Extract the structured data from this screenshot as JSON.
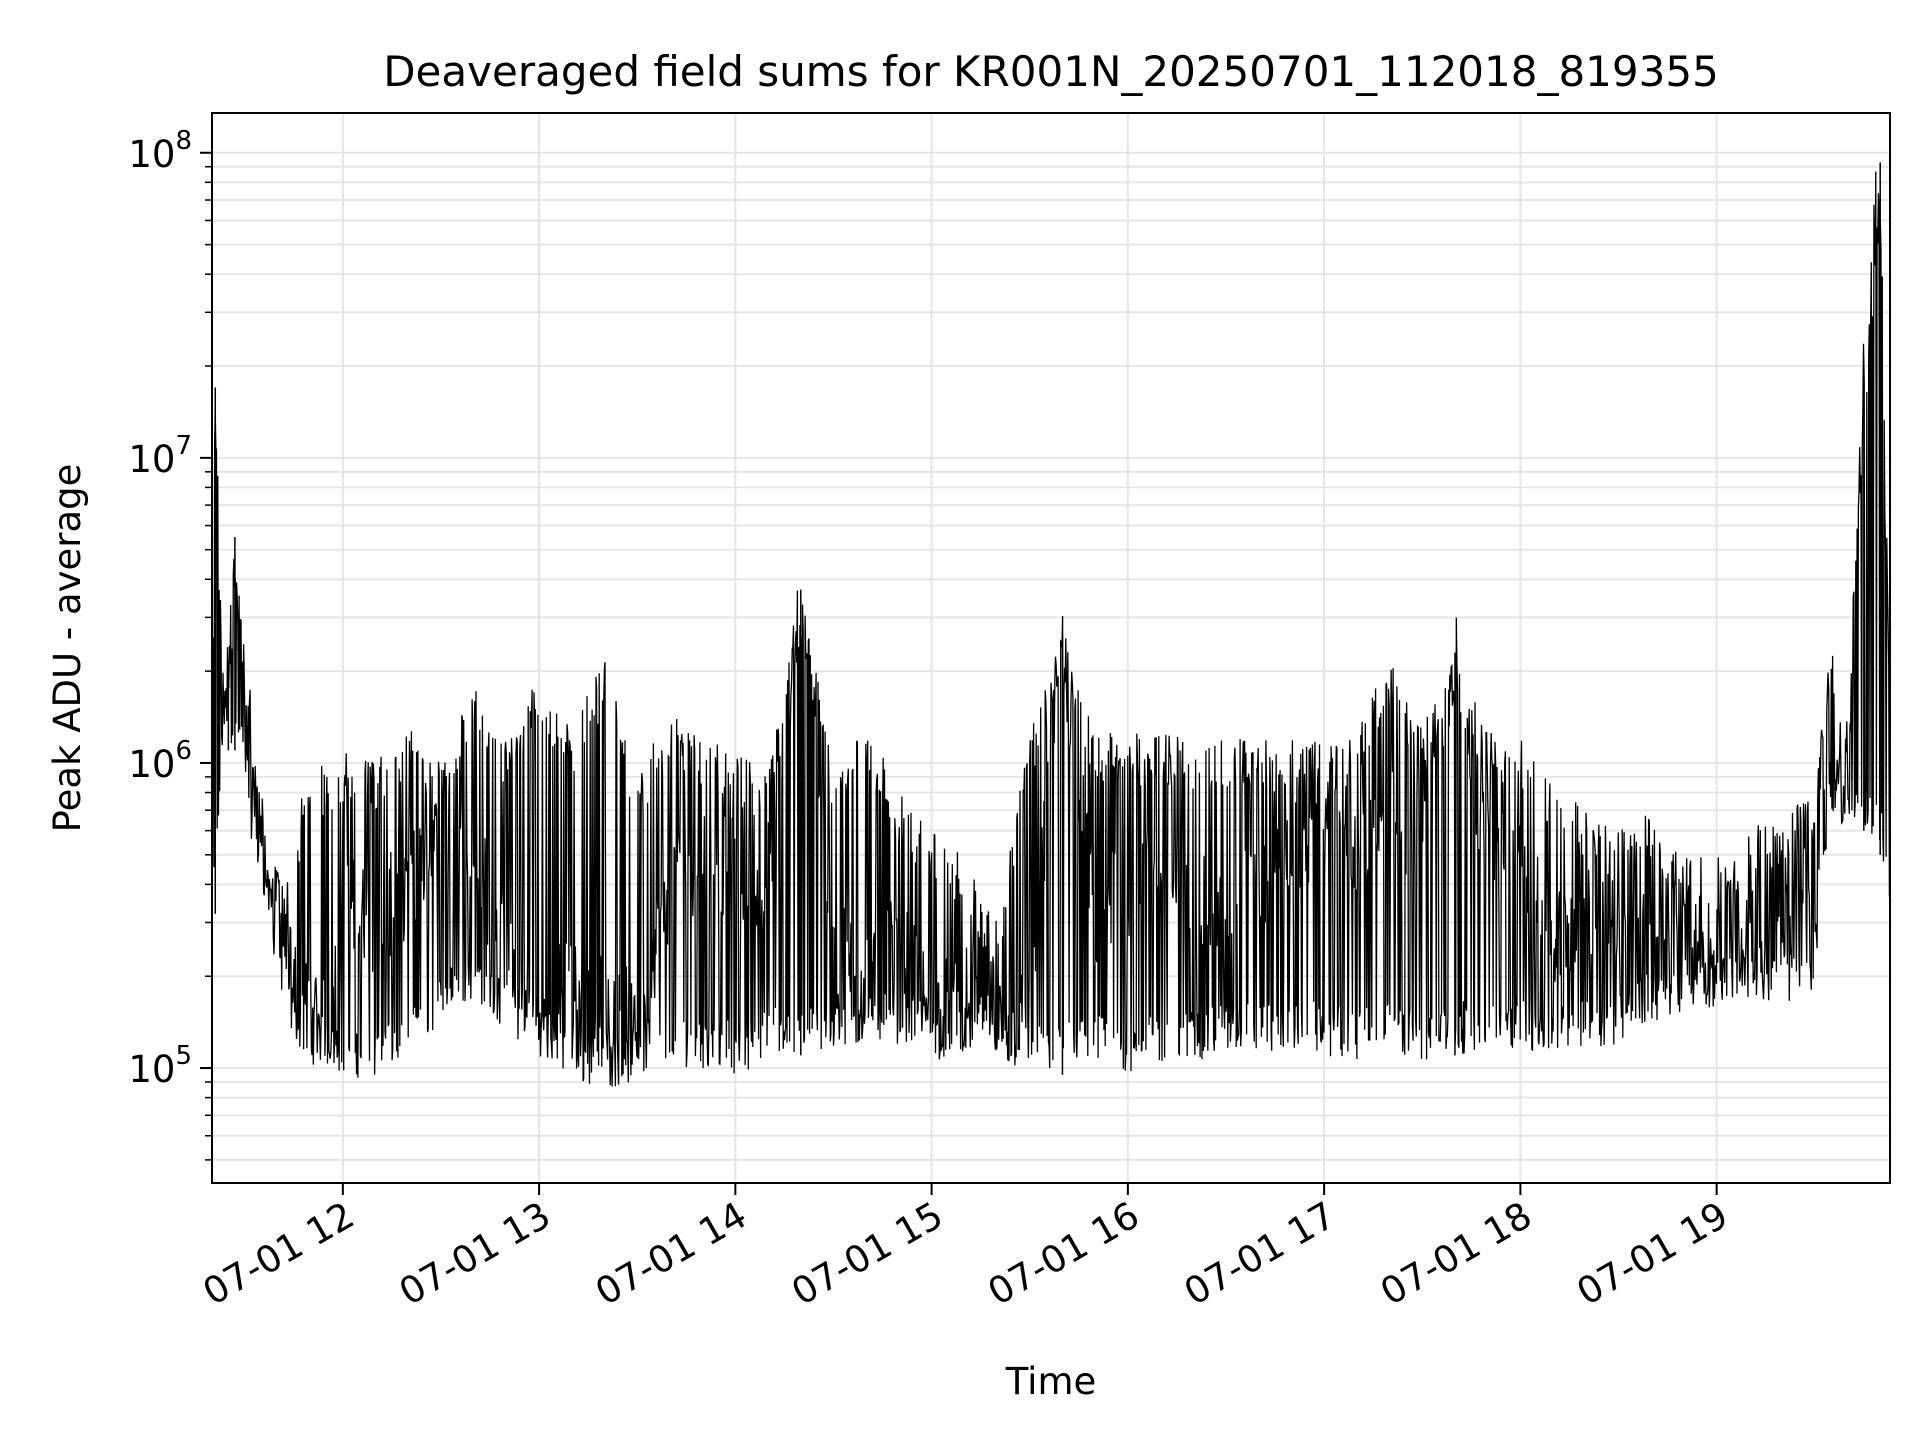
{
  "chart_data": {
    "type": "line",
    "title": "Deaveraged field sums for KR001N_20250701_112018_819355",
    "xlabel": "Time",
    "ylabel": "Peak ADU - average",
    "yscale": "log",
    "ylim": [
      42000,
      135000000
    ],
    "xlim": [
      "2025-07-01 11:20",
      "2025-07-01 19:53"
    ],
    "grid": true,
    "line_color": "#000000",
    "grid_color": "#e6e6e6",
    "x_ticks": [
      {
        "label": "07-01 12",
        "value": "2025-07-01 12:00"
      },
      {
        "label": "07-01 13",
        "value": "2025-07-01 13:00"
      },
      {
        "label": "07-01 14",
        "value": "2025-07-01 14:00"
      },
      {
        "label": "07-01 15",
        "value": "2025-07-01 15:00"
      },
      {
        "label": "07-01 16",
        "value": "2025-07-01 16:00"
      },
      {
        "label": "07-01 17",
        "value": "2025-07-01 17:00"
      },
      {
        "label": "07-01 18",
        "value": "2025-07-01 18:00"
      },
      {
        "label": "07-01 19",
        "value": "2025-07-01 19:00"
      }
    ],
    "y_ticks": [
      {
        "base": "10",
        "exp": "5",
        "value": 100000
      },
      {
        "base": "10",
        "exp": "6",
        "value": 1000000
      },
      {
        "base": "10",
        "exp": "7",
        "value": 10000000
      },
      {
        "base": "10",
        "exp": "8",
        "value": 100000000
      }
    ],
    "series": [
      {
        "x": [
          "2025-07-01 11:20",
          "2025-07-01 11:21",
          "2025-07-01 11:23",
          "2025-07-01 11:25",
          "2025-07-01 11:27",
          "2025-07-01 11:30",
          "2025-07-01 11:33",
          "2025-07-01 11:36",
          "2025-07-01 11:40",
          "2025-07-01 11:44",
          "2025-07-01 11:48",
          "2025-07-01 11:52",
          "2025-07-01 11:56",
          "2025-07-01 12:00",
          "2025-07-01 12:10",
          "2025-07-01 12:20",
          "2025-07-01 12:30",
          "2025-07-01 12:40",
          "2025-07-01 12:50",
          "2025-07-01 13:00",
          "2025-07-01 13:10",
          "2025-07-01 13:20",
          "2025-07-01 13:30",
          "2025-07-01 13:40",
          "2025-07-01 13:50",
          "2025-07-01 14:00",
          "2025-07-01 14:10",
          "2025-07-01 14:20",
          "2025-07-01 14:30",
          "2025-07-01 14:40",
          "2025-07-01 14:50",
          "2025-07-01 15:00",
          "2025-07-01 15:10",
          "2025-07-01 15:20",
          "2025-07-01 15:30",
          "2025-07-01 15:40",
          "2025-07-01 15:50",
          "2025-07-01 16:00",
          "2025-07-01 16:10",
          "2025-07-01 16:20",
          "2025-07-01 16:30",
          "2025-07-01 16:40",
          "2025-07-01 16:50",
          "2025-07-01 17:00",
          "2025-07-01 17:10",
          "2025-07-01 17:20",
          "2025-07-01 17:30",
          "2025-07-01 17:40",
          "2025-07-01 17:50",
          "2025-07-01 18:00",
          "2025-07-01 18:10",
          "2025-07-01 18:20",
          "2025-07-01 18:30",
          "2025-07-01 18:40",
          "2025-07-01 18:50",
          "2025-07-01 19:00",
          "2025-07-01 19:10",
          "2025-07-01 19:20",
          "2025-07-01 19:30",
          "2025-07-01 19:35",
          "2025-07-01 19:40",
          "2025-07-01 19:45",
          "2025-07-01 19:50",
          "2025-07-01 19:53"
        ],
        "y": [
          600000,
          17000000,
          1500000,
          2000000,
          5500000,
          1600000,
          900000,
          500000,
          300000,
          200000,
          180000,
          150000,
          160000,
          350000,
          300000,
          400000,
          600000,
          500000,
          250000,
          150000,
          200000,
          160000,
          140000,
          400000,
          500000,
          450000,
          300000,
          3700000,
          250000,
          200000,
          250000,
          150000,
          170000,
          140000,
          150000,
          2600000,
          300000,
          400000,
          450000,
          350000,
          300000,
          400000,
          500000,
          600000,
          550000,
          650000,
          600000,
          2300000,
          500000,
          450000,
          250000,
          350000,
          300000,
          250000,
          250000,
          240000,
          260000,
          300000,
          330000,
          1000000,
          850000,
          18000000,
          93000000,
          800000
        ],
        "y_low": [
          320000,
          320000,
          1000000,
          1100000,
          1100000,
          900000,
          450000,
          350000,
          220000,
          130000,
          110000,
          100000,
          100000,
          95000,
          90000,
          110000,
          140000,
          170000,
          130000,
          110000,
          90000,
          85000,
          90000,
          100000,
          100000,
          95000,
          105000,
          110000,
          110000,
          120000,
          120000,
          115000,
          110000,
          120000,
          95000,
          95000,
          100000,
          95000,
          100000,
          105000,
          110000,
          110000,
          115000,
          110000,
          105000,
          115000,
          100000,
          110000,
          115000,
          115000,
          110000,
          115000,
          120000,
          140000,
          150000,
          160000,
          170000,
          160000,
          180000,
          700000,
          600000,
          600000,
          500000,
          320000
        ],
        "y_high": [
          2400000,
          17000000,
          2400000,
          2500000,
          5500000,
          2400000,
          1100000,
          700000,
          500000,
          400000,
          900000,
          1000000,
          1000000,
          1100000,
          1000000,
          1400000,
          1000000,
          1800000,
          1200000,
          2000000,
          1300000,
          2200000,
          900000,
          1500000,
          1200000,
          1100000,
          900000,
          3700000,
          1000000,
          1400000,
          800000,
          600000,
          500000,
          300000,
          1300000,
          2600000,
          1300000,
          1250000,
          1250000,
          1200000,
          1200000,
          1200000,
          1200000,
          1200000,
          1250000,
          2300000,
          1300000,
          2300000,
          1300000,
          1200000,
          900000,
          700000,
          600000,
          700000,
          500000,
          500000,
          600000,
          700000,
          800000,
          2800000,
          1500000,
          18000000,
          93000000,
          1800000
        ]
      }
    ]
  }
}
